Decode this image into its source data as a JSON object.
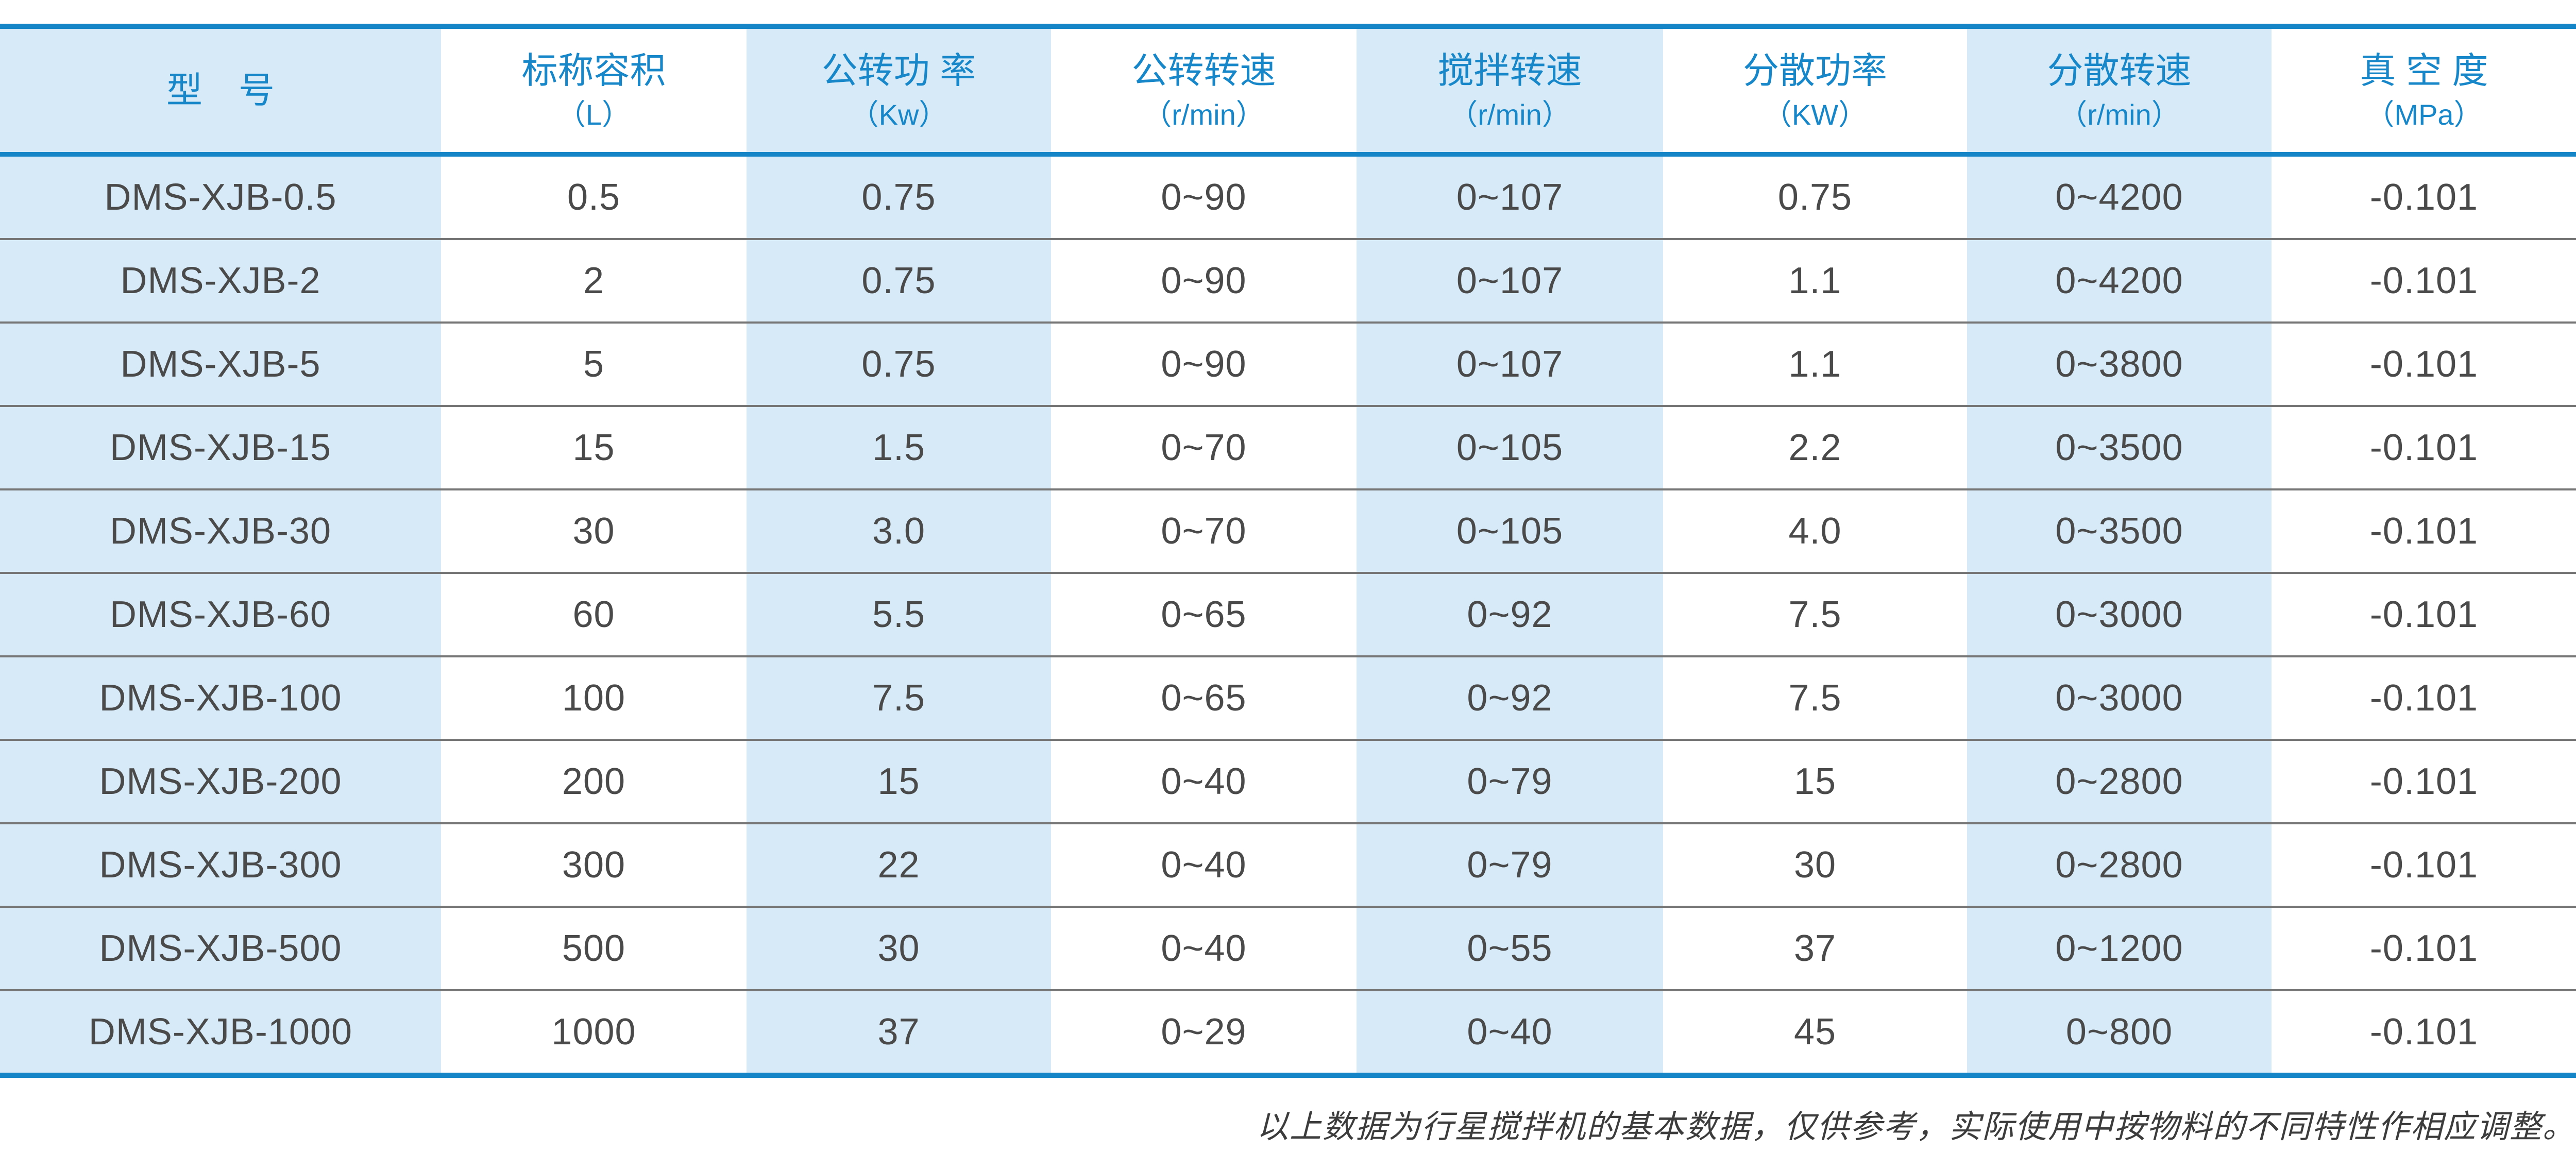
{
  "table": {
    "columns": [
      {
        "key": "model",
        "label": "型　号",
        "unit": ""
      },
      {
        "key": "capacity",
        "label": "标称容积",
        "unit": "（L）"
      },
      {
        "key": "rev-power",
        "label": "公转功 率",
        "unit": "（Kw）"
      },
      {
        "key": "rev-speed",
        "label": "公转转速",
        "unit": "（r/min）"
      },
      {
        "key": "stir-speed",
        "label": "搅拌转速",
        "unit": "（r/min）"
      },
      {
        "key": "disp-power",
        "label": "分散功率",
        "unit": "（KW）"
      },
      {
        "key": "disp-speed",
        "label": "分散转速",
        "unit": "（r/min）"
      },
      {
        "key": "vacuum",
        "label": "真 空 度",
        "unit": "（MPa）"
      }
    ],
    "rows": [
      [
        "DMS-XJB-0.5",
        "0.5",
        "0.75",
        "0~90",
        "0~107",
        "0.75",
        "0~4200",
        "-0.101"
      ],
      [
        "DMS-XJB-2",
        "2",
        "0.75",
        "0~90",
        "0~107",
        "1.1",
        "0~4200",
        "-0.101"
      ],
      [
        "DMS-XJB-5",
        "5",
        "0.75",
        "0~90",
        "0~107",
        "1.1",
        "0~3800",
        "-0.101"
      ],
      [
        "DMS-XJB-15",
        "15",
        "1.5",
        "0~70",
        "0~105",
        "2.2",
        "0~3500",
        "-0.101"
      ],
      [
        "DMS-XJB-30",
        "30",
        "3.0",
        "0~70",
        "0~105",
        "4.0",
        "0~3500",
        "-0.101"
      ],
      [
        "DMS-XJB-60",
        "60",
        "5.5",
        "0~65",
        "0~92",
        "7.5",
        "0~3000",
        "-0.101"
      ],
      [
        "DMS-XJB-100",
        "100",
        "7.5",
        "0~65",
        "0~92",
        "7.5",
        "0~3000",
        "-0.101"
      ],
      [
        "DMS-XJB-200",
        "200",
        "15",
        "0~40",
        "0~79",
        "15",
        "0~2800",
        "-0.101"
      ],
      [
        "DMS-XJB-300",
        "300",
        "22",
        "0~40",
        "0~79",
        "30",
        "0~2800",
        "-0.101"
      ],
      [
        "DMS-XJB-500",
        "500",
        "30",
        "0~40",
        "0~55",
        "37",
        "0~1200",
        "-0.101"
      ],
      [
        "DMS-XJB-1000",
        "1000",
        "37",
        "0~29",
        "0~40",
        "45",
        "0~800",
        "-0.101"
      ]
    ],
    "shaded_column_indexes": [
      0,
      2,
      4,
      6
    ]
  },
  "footer_note": "以上数据为行星搅拌机的基本数据，仅供参考，实际使用中按物料的不同特性作相应调整。",
  "colors": {
    "accent_blue": "#1685c8",
    "header_text_blue": "#1787c9",
    "column_shade_blue": "#d7eaf8",
    "body_text_gray": "#4a4a4a",
    "row_separator_gray": "#767676",
    "note_text_gray": "#3c3c3c"
  }
}
